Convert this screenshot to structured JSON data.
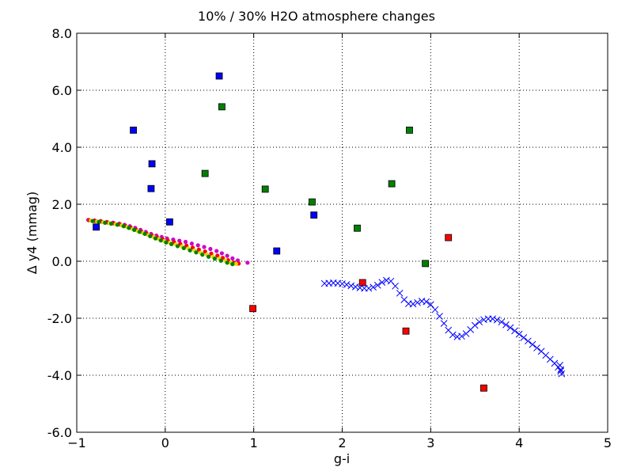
{
  "chart_data": {
    "type": "scatter",
    "title": "10% / 30% H2O atmosphere changes",
    "xlabel": "g-i",
    "ylabel": "Δ y4 (mmag)",
    "xlim": [
      -1,
      5
    ],
    "ylim": [
      -6,
      8
    ],
    "x_ticks": [
      -1,
      0,
      1,
      2,
      3,
      4,
      5
    ],
    "x_tick_labels": [
      "−1",
      "0",
      "1",
      "2",
      "3",
      "4",
      "5"
    ],
    "y_ticks": [
      -6,
      -4,
      -2,
      0,
      2,
      4,
      6,
      8
    ],
    "y_tick_labels": [
      "-6.0",
      "-4.0",
      "-2.0",
      "0.0",
      "2.0",
      "4.0",
      "6.0",
      "8.0"
    ],
    "grid": true,
    "grid_style": "dotted",
    "series": [
      {
        "marker": "circle",
        "color": "#cc00cc",
        "points": [
          [
            -0.87,
            1.45
          ],
          [
            -0.8,
            1.43
          ],
          [
            -0.73,
            1.41
          ],
          [
            -0.66,
            1.38
          ],
          [
            -0.59,
            1.35
          ],
          [
            -0.52,
            1.32
          ],
          [
            -0.46,
            1.28
          ],
          [
            -0.4,
            1.23
          ],
          [
            -0.34,
            1.17
          ],
          [
            -0.28,
            1.1
          ],
          [
            -0.22,
            1.03
          ],
          [
            -0.16,
            0.96
          ],
          [
            -0.1,
            0.9
          ],
          [
            -0.04,
            0.85
          ],
          [
            0.02,
            0.8
          ],
          [
            0.09,
            0.76
          ],
          [
            0.16,
            0.72
          ],
          [
            0.23,
            0.68
          ],
          [
            0.3,
            0.62
          ],
          [
            0.37,
            0.56
          ],
          [
            0.44,
            0.5
          ],
          [
            0.51,
            0.43
          ],
          [
            0.58,
            0.36
          ],
          [
            0.64,
            0.28
          ],
          [
            0.7,
            0.19
          ],
          [
            0.76,
            0.1
          ],
          [
            0.82,
            0.03
          ],
          [
            0.93,
            -0.05
          ]
        ]
      },
      {
        "marker": "circle",
        "color": "#ff0000",
        "points": [
          [
            -0.86,
            1.44
          ],
          [
            -0.79,
            1.41
          ],
          [
            -0.72,
            1.39
          ],
          [
            -0.65,
            1.36
          ],
          [
            -0.58,
            1.33
          ],
          [
            -0.51,
            1.29
          ],
          [
            -0.45,
            1.24
          ],
          [
            -0.39,
            1.18
          ],
          [
            -0.33,
            1.11
          ],
          [
            -0.27,
            1.04
          ],
          [
            -0.21,
            0.97
          ],
          [
            -0.15,
            0.9
          ],
          [
            -0.09,
            0.83
          ],
          [
            -0.03,
            0.77
          ],
          [
            0.03,
            0.72
          ],
          [
            0.1,
            0.67
          ],
          [
            0.17,
            0.61
          ],
          [
            0.24,
            0.55
          ],
          [
            0.31,
            0.48
          ],
          [
            0.38,
            0.41
          ],
          [
            0.45,
            0.34
          ],
          [
            0.52,
            0.27
          ],
          [
            0.59,
            0.2
          ],
          [
            0.65,
            0.12
          ],
          [
            0.71,
            0.04
          ],
          [
            0.77,
            -0.04
          ],
          [
            0.83,
            -0.08
          ]
        ]
      },
      {
        "marker": "circle",
        "color": "#dddd00",
        "points": [
          [
            -0.84,
            1.43
          ],
          [
            -0.77,
            1.4
          ],
          [
            -0.7,
            1.37
          ],
          [
            -0.63,
            1.34
          ],
          [
            -0.56,
            1.3
          ],
          [
            -0.49,
            1.26
          ],
          [
            -0.43,
            1.2
          ],
          [
            -0.37,
            1.13
          ],
          [
            -0.31,
            1.06
          ],
          [
            -0.25,
            0.99
          ],
          [
            -0.19,
            0.92
          ],
          [
            -0.13,
            0.85
          ],
          [
            -0.07,
            0.78
          ],
          [
            -0.01,
            0.71
          ],
          [
            0.05,
            0.65
          ],
          [
            0.12,
            0.59
          ],
          [
            0.19,
            0.52
          ],
          [
            0.26,
            0.45
          ],
          [
            0.33,
            0.38
          ],
          [
            0.4,
            0.3
          ],
          [
            0.47,
            0.23
          ],
          [
            0.54,
            0.16
          ],
          [
            0.61,
            0.09
          ],
          [
            0.68,
            0.02
          ],
          [
            0.74,
            -0.05
          ],
          [
            0.8,
            -0.09
          ]
        ]
      },
      {
        "marker": "circle",
        "color": "#008000",
        "points": [
          [
            -0.82,
            1.41
          ],
          [
            -0.75,
            1.38
          ],
          [
            -0.68,
            1.35
          ],
          [
            -0.61,
            1.32
          ],
          [
            -0.54,
            1.28
          ],
          [
            -0.47,
            1.23
          ],
          [
            -0.41,
            1.17
          ],
          [
            -0.35,
            1.1
          ],
          [
            -0.29,
            1.03
          ],
          [
            -0.23,
            0.96
          ],
          [
            -0.17,
            0.88
          ],
          [
            -0.11,
            0.8
          ],
          [
            -0.05,
            0.73
          ],
          [
            0.01,
            0.66
          ],
          [
            0.07,
            0.6
          ],
          [
            0.14,
            0.53
          ],
          [
            0.21,
            0.46
          ],
          [
            0.28,
            0.38
          ],
          [
            0.35,
            0.31
          ],
          [
            0.42,
            0.23
          ],
          [
            0.49,
            0.16
          ],
          [
            0.56,
            0.09
          ],
          [
            0.63,
            0.02
          ],
          [
            0.7,
            -0.05
          ],
          [
            0.76,
            -0.1
          ]
        ]
      },
      {
        "marker": "square",
        "color": "#0000ff",
        "points": [
          [
            0.61,
            6.5
          ],
          [
            -0.36,
            4.6
          ],
          [
            -0.15,
            3.42
          ],
          [
            -0.16,
            2.55
          ],
          [
            0.05,
            1.38
          ],
          [
            1.68,
            1.62
          ],
          [
            1.26,
            0.36
          ],
          [
            -0.78,
            1.2
          ]
        ]
      },
      {
        "marker": "square",
        "color": "#008000",
        "points": [
          [
            0.64,
            5.42
          ],
          [
            2.76,
            4.6
          ],
          [
            0.45,
            3.08
          ],
          [
            1.13,
            2.53
          ],
          [
            2.56,
            2.72
          ],
          [
            1.66,
            2.08
          ],
          [
            2.17,
            1.16
          ],
          [
            2.94,
            -0.08
          ]
        ]
      },
      {
        "marker": "square",
        "color": "#ff0000",
        "points": [
          [
            3.2,
            0.83
          ],
          [
            2.23,
            -0.75
          ],
          [
            0.99,
            -1.66
          ],
          [
            2.72,
            -2.45
          ],
          [
            3.6,
            -4.45
          ]
        ]
      },
      {
        "marker": "x",
        "color": "#0000ff",
        "points": [
          [
            1.8,
            -0.78
          ],
          [
            1.85,
            -0.77
          ],
          [
            1.9,
            -0.76
          ],
          [
            1.95,
            -0.77
          ],
          [
            2.0,
            -0.79
          ],
          [
            2.05,
            -0.82
          ],
          [
            2.1,
            -0.86
          ],
          [
            2.15,
            -0.9
          ],
          [
            2.2,
            -0.93
          ],
          [
            2.25,
            -0.95
          ],
          [
            2.3,
            -0.95
          ],
          [
            2.35,
            -0.91
          ],
          [
            2.4,
            -0.84
          ],
          [
            2.45,
            -0.74
          ],
          [
            2.5,
            -0.67
          ],
          [
            2.55,
            -0.7
          ],
          [
            2.6,
            -0.87
          ],
          [
            2.65,
            -1.12
          ],
          [
            2.7,
            -1.35
          ],
          [
            2.75,
            -1.49
          ],
          [
            2.8,
            -1.5
          ],
          [
            2.85,
            -1.45
          ],
          [
            2.9,
            -1.4
          ],
          [
            2.95,
            -1.42
          ],
          [
            3.0,
            -1.52
          ],
          [
            3.05,
            -1.7
          ],
          [
            3.1,
            -1.93
          ],
          [
            3.15,
            -2.18
          ],
          [
            3.2,
            -2.42
          ],
          [
            3.25,
            -2.58
          ],
          [
            3.3,
            -2.65
          ],
          [
            3.35,
            -2.63
          ],
          [
            3.4,
            -2.54
          ],
          [
            3.45,
            -2.4
          ],
          [
            3.5,
            -2.25
          ],
          [
            3.55,
            -2.13
          ],
          [
            3.6,
            -2.05
          ],
          [
            3.65,
            -2.02
          ],
          [
            3.7,
            -2.02
          ],
          [
            3.75,
            -2.06
          ],
          [
            3.8,
            -2.13
          ],
          [
            3.85,
            -2.23
          ],
          [
            3.9,
            -2.33
          ],
          [
            3.95,
            -2.44
          ],
          [
            4.0,
            -2.56
          ],
          [
            4.05,
            -2.68
          ],
          [
            4.1,
            -2.8
          ],
          [
            4.15,
            -2.92
          ],
          [
            4.2,
            -3.04
          ],
          [
            4.25,
            -3.16
          ],
          [
            4.3,
            -3.3
          ],
          [
            4.35,
            -3.44
          ],
          [
            4.4,
            -3.58
          ],
          [
            4.44,
            -3.72
          ],
          [
            4.47,
            -3.85
          ],
          [
            4.48,
            -3.95
          ],
          [
            4.47,
            -3.8
          ],
          [
            4.46,
            -3.65
          ]
        ]
      }
    ]
  }
}
